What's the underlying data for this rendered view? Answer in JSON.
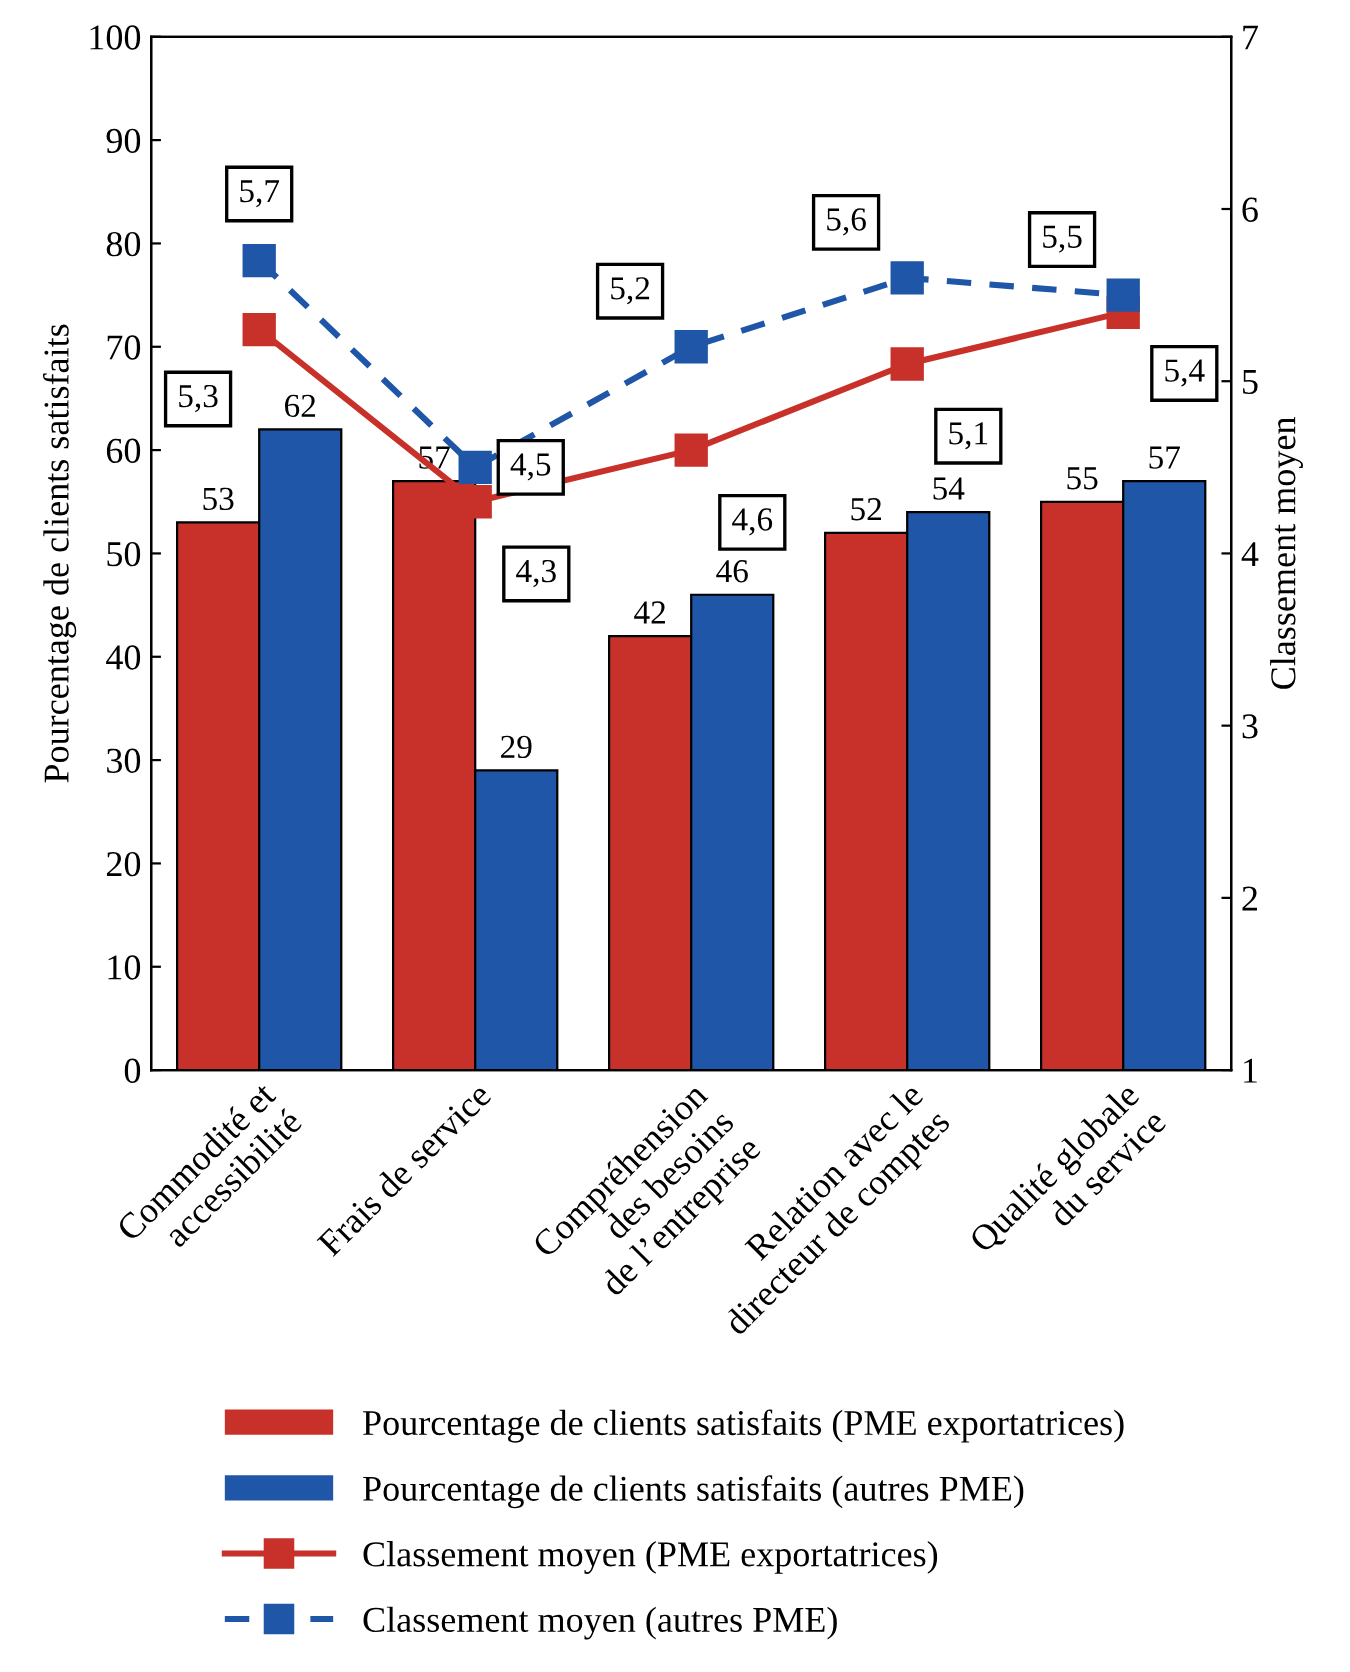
{
  "chart_data": {
    "type": "bar",
    "ylabel": "Pourcentage de clients satisfaits",
    "y2label": "Classement moyen",
    "categories": [
      "Commodité et\naccessibilité",
      "Frais de service",
      "Compréhension\ndes besoins\nde l’entreprise",
      "Relation avec le\ndirecteur de comptes",
      "Qualité globale\ndu service"
    ],
    "series": [
      {
        "name": "Pourcentage de clients satisfaits (PME exportatrices)",
        "color": "#c8312a",
        "values": [
          53,
          57,
          42,
          52,
          55
        ]
      },
      {
        "name": "Pourcentage de clients satisfaits (autres PME)",
        "color": "#1f56a8",
        "values": [
          62,
          29,
          46,
          54,
          57
        ]
      },
      {
        "name": "Classement moyen (PME exportatrices)",
        "type": "line",
        "axis": "y2",
        "color": "#c8312a",
        "marker": "square",
        "line_style": "solid",
        "values": [
          5.3,
          4.3,
          4.6,
          5.1,
          5.4
        ],
        "value_labels": [
          "5,3",
          "4,3",
          "4,6",
          "5,1",
          "5,4"
        ]
      },
      {
        "name": "Classement moyen (autres PME)",
        "type": "line",
        "axis": "y2",
        "color": "#1f56a8",
        "marker": "square",
        "line_style": "dashed",
        "values": [
          5.7,
          4.5,
          5.2,
          5.6,
          5.5
        ],
        "value_labels": [
          "5,7",
          "4,5",
          "5,2",
          "5,6",
          "5,5"
        ]
      }
    ],
    "data_labels": true,
    "ylim": [
      0,
      100
    ],
    "yticks": [
      0,
      10,
      20,
      30,
      40,
      50,
      60,
      70,
      80,
      90,
      100
    ],
    "y2lim": [
      1,
      7
    ],
    "y2ticks": [
      1,
      2,
      3,
      4,
      5,
      6,
      7
    ],
    "grid": false,
    "legend": "bottom"
  }
}
